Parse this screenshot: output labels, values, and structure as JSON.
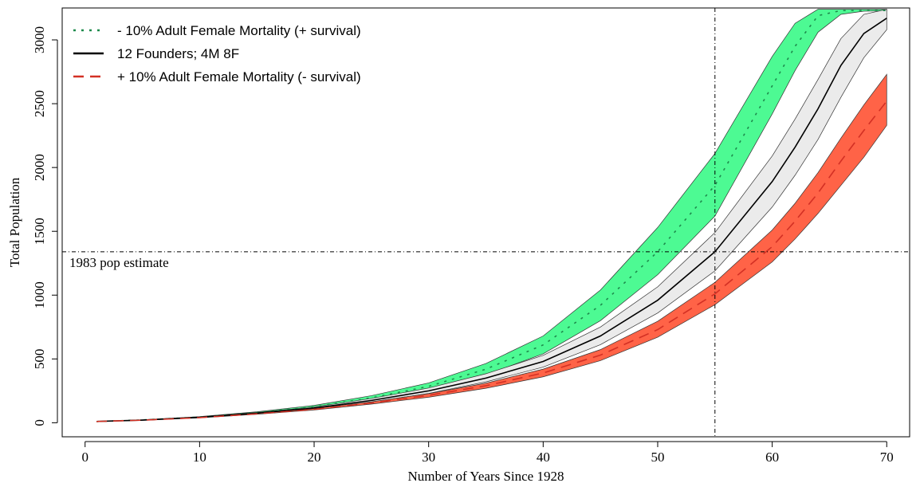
{
  "chart_data": {
    "type": "area",
    "title": "",
    "xlabel": "Number of Years Since 1928",
    "ylabel": "Total Population",
    "xlim": [
      -2,
      72
    ],
    "ylim": [
      -110,
      3250
    ],
    "x_ticks": [
      0,
      10,
      20,
      30,
      40,
      50,
      60,
      70
    ],
    "y_ticks": [
      0,
      500,
      1000,
      1500,
      2000,
      2500,
      3000
    ],
    "grid": false,
    "legend_position": "top-left",
    "x": [
      1,
      5,
      10,
      15,
      20,
      25,
      30,
      35,
      40,
      45,
      50,
      55,
      60,
      62,
      64,
      66,
      68,
      70
    ],
    "series": [
      {
        "name": "- 10% Adult Female Mortality (+ survival)",
        "style": "dotted",
        "line_color": "#1e8a4c",
        "band_color": "#4dfa93",
        "center": [
          10,
          22,
          45,
          80,
          125,
          195,
          285,
          420,
          610,
          920,
          1340,
          1860,
          2640,
          2950,
          3190,
          3230,
          3230,
          3230
        ],
        "lower": [
          10,
          21,
          42,
          74,
          115,
          178,
          258,
          376,
          540,
          800,
          1160,
          1620,
          2420,
          2760,
          3060,
          3200,
          3225,
          3228
        ],
        "upper": [
          10,
          23,
          48,
          86,
          136,
          212,
          312,
          464,
          680,
          1040,
          1530,
          2110,
          2870,
          3130,
          3240,
          3240,
          3240,
          3240
        ]
      },
      {
        "name": "12 Founders; 4M 8F",
        "style": "solid",
        "line_color": "#000000",
        "band_color": "#ebebeb",
        "center": [
          10,
          21,
          43,
          75,
          115,
          175,
          250,
          350,
          480,
          680,
          960,
          1340,
          1890,
          2160,
          2460,
          2800,
          3050,
          3170
        ],
        "lower": [
          10,
          20,
          40,
          70,
          107,
          162,
          230,
          320,
          436,
          612,
          860,
          1190,
          1690,
          1940,
          2220,
          2550,
          2860,
          3080
        ],
        "upper": [
          10,
          22,
          46,
          80,
          124,
          190,
          272,
          384,
          528,
          750,
          1065,
          1490,
          2090,
          2380,
          2690,
          3010,
          3200,
          3240
        ]
      },
      {
        "name": "+ 10% Adult Female Mortality (- survival)",
        "style": "dashed",
        "line_color": "#d33024",
        "band_color": "#ff6347",
        "center": [
          10,
          20,
          40,
          70,
          105,
          155,
          215,
          290,
          390,
          530,
          730,
          1010,
          1380,
          1580,
          1800,
          2050,
          2290,
          2520
        ],
        "lower": [
          10,
          19,
          38,
          66,
          100,
          146,
          200,
          270,
          360,
          487,
          670,
          925,
          1260,
          1440,
          1640,
          1860,
          2080,
          2330
        ],
        "upper": [
          10,
          21,
          42,
          74,
          112,
          164,
          228,
          310,
          420,
          573,
          795,
          1100,
          1510,
          1720,
          1960,
          2230,
          2490,
          2730
        ]
      }
    ],
    "reference_lines": [
      {
        "orientation": "horizontal",
        "value": 1340,
        "label": "1983 pop estimate"
      },
      {
        "orientation": "vertical",
        "value": 55,
        "label": ""
      }
    ]
  }
}
